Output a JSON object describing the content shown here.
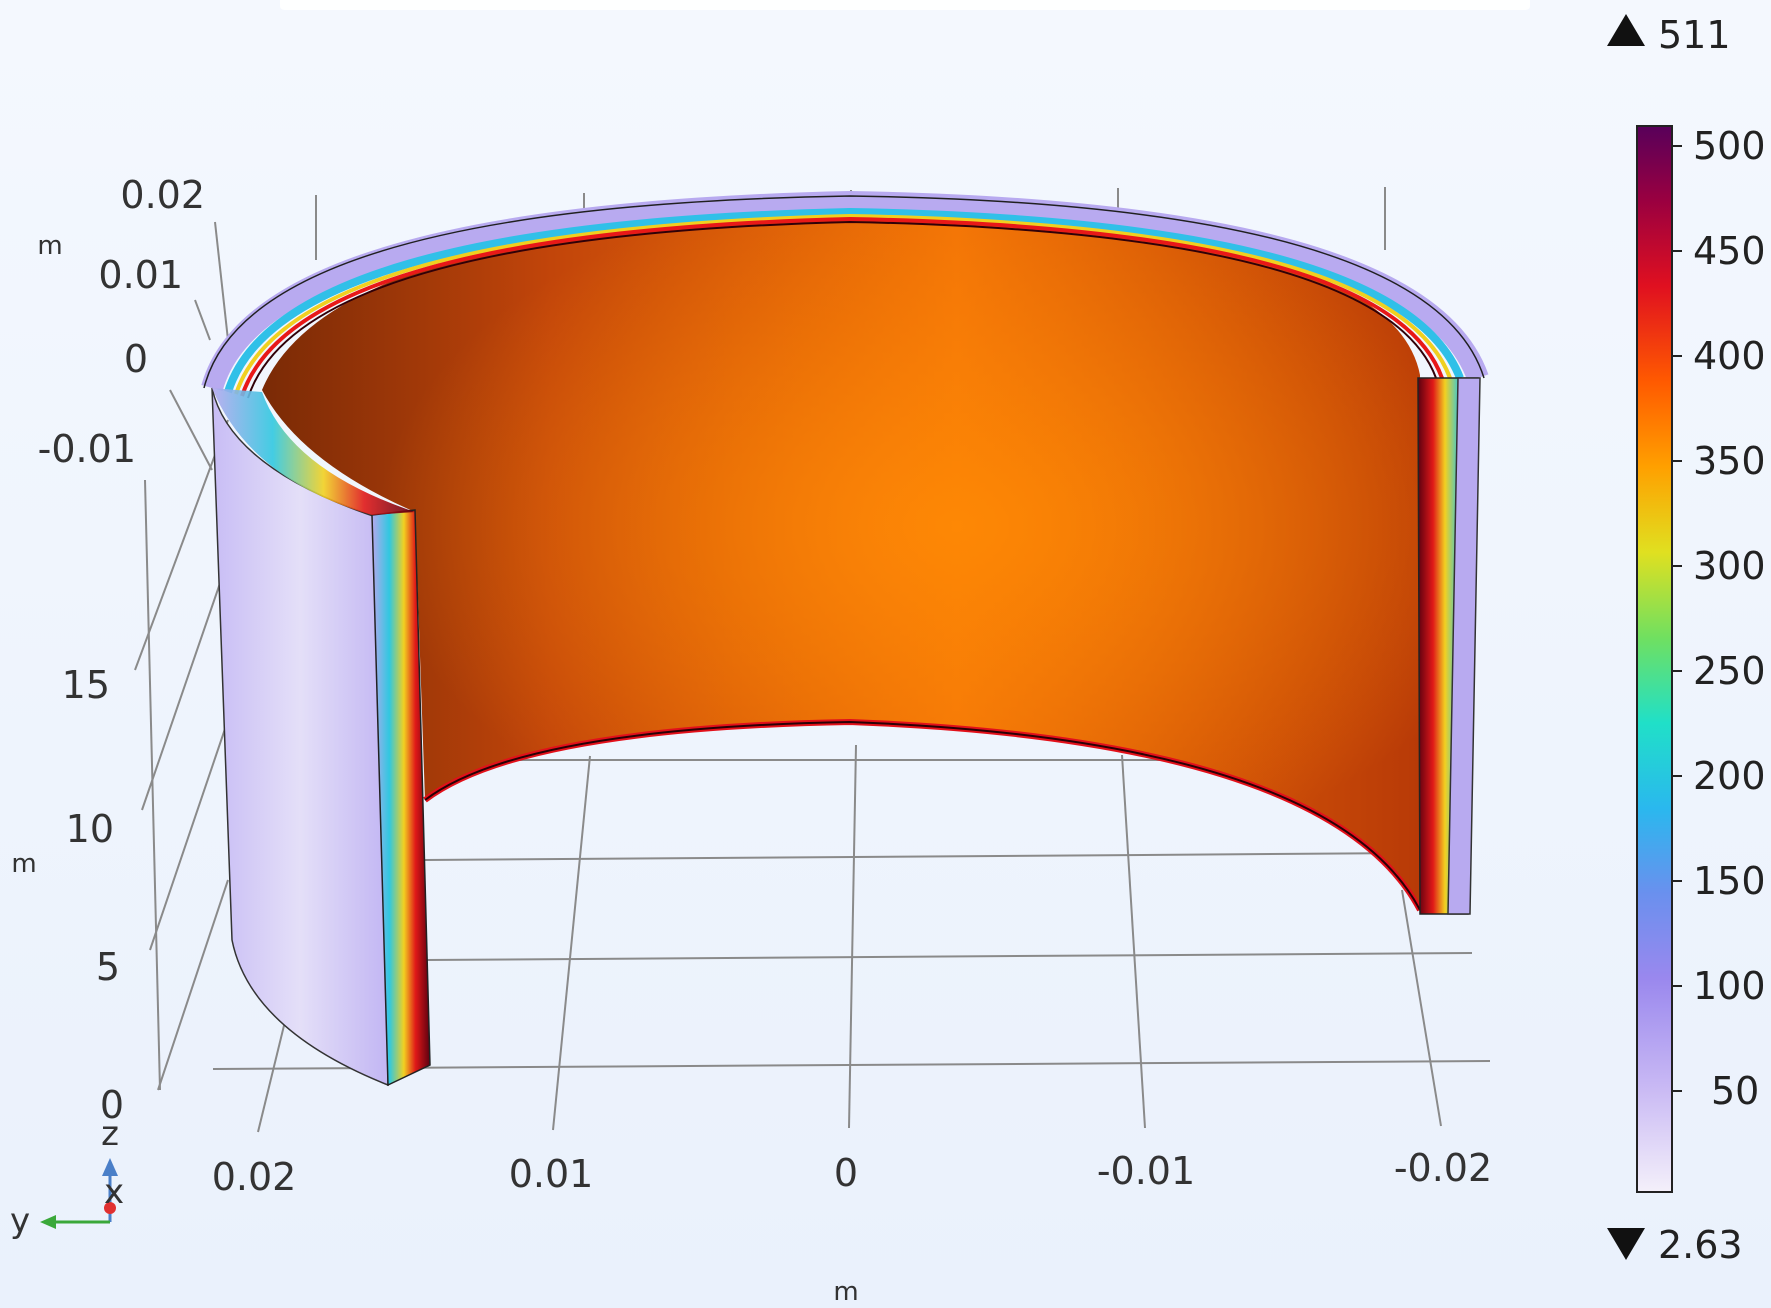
{
  "plot": {
    "axis_labels": {
      "y_axis_ticks": [
        "0.02",
        "0.01",
        "0",
        "-0.01",
        "-0.02"
      ],
      "x_axis_ticks": [
        "0.02",
        "0.01",
        "0",
        "-0.01"
      ],
      "z_axis_ticks": [
        "15",
        "10",
        "5",
        "0"
      ],
      "unit": "m"
    },
    "triad": {
      "z": "z",
      "x": "x",
      "y": "y"
    },
    "colorbar": {
      "max_label": "511",
      "min_label": "2.63",
      "ticks": [
        "500",
        "450",
        "400",
        "350",
        "300",
        "250",
        "200",
        "150",
        "100",
        "50"
      ],
      "colormap": "HeatCameraLight"
    }
  }
}
